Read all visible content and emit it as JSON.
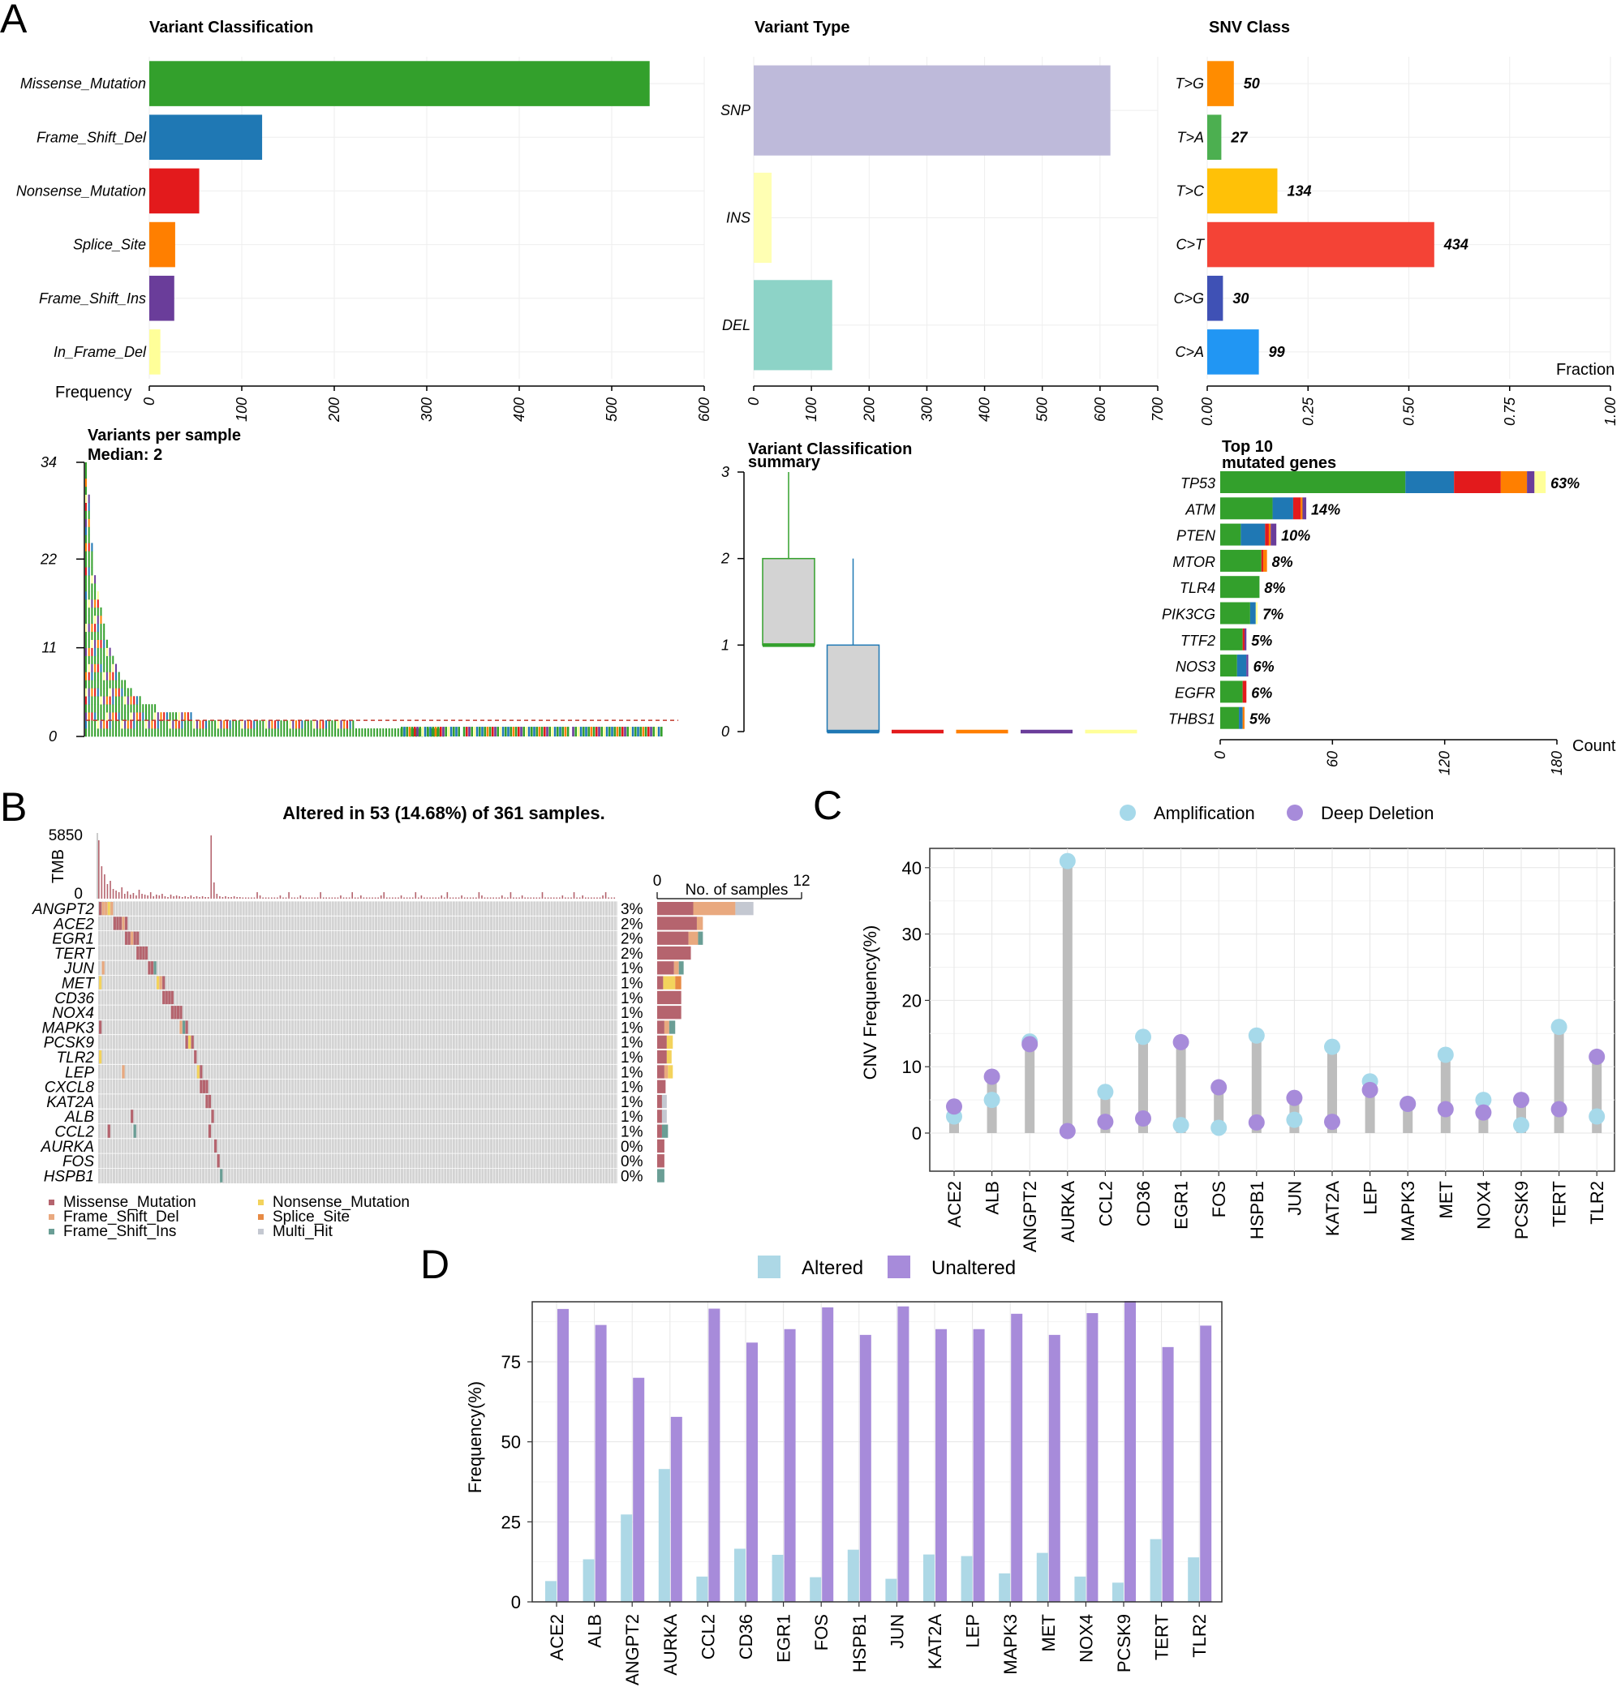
{
  "panel_labels": {
    "a": "A",
    "b": "B",
    "c": "C",
    "d": "D"
  },
  "chart_data": [
    {
      "id": "variant_classification",
      "type": "bar",
      "orientation": "horizontal",
      "title": "Variant Classification",
      "xlabel": "Frequency",
      "categories": [
        "Missense_Mutation",
        "Frame_Shift_Del",
        "Nonsense_Mutation",
        "Splice_Site",
        "Frame_Shift_Ins",
        "In_Frame_Del"
      ],
      "values": [
        541,
        122,
        54,
        28,
        27,
        12
      ],
      "colors": [
        "#33a02c",
        "#1f78b4",
        "#e31a1c",
        "#ff7f00",
        "#6a3d9a",
        "#ffff99"
      ],
      "xlim": [
        0,
        600
      ],
      "ticks": [
        0,
        100,
        200,
        300,
        400,
        500,
        600
      ]
    },
    {
      "id": "variant_type",
      "type": "bar",
      "orientation": "horizontal",
      "title": "Variant Type",
      "categories": [
        "SNP",
        "INS",
        "DEL"
      ],
      "values": [
        618,
        31,
        136
      ],
      "colors": [
        "#bebada",
        "#ffffb3",
        "#8dd3c7"
      ],
      "xlim": [
        0,
        700
      ],
      "ticks": [
        0,
        100,
        200,
        300,
        400,
        500,
        600,
        700
      ]
    },
    {
      "id": "snv_class",
      "type": "bar",
      "orientation": "horizontal",
      "title": "SNV Class",
      "xlabel": "Fraction",
      "categories": [
        "T>G",
        "T>A",
        "T>C",
        "C>T",
        "C>G",
        "C>A"
      ],
      "values": [
        0.066,
        0.035,
        0.174,
        0.563,
        0.039,
        0.128
      ],
      "labels": [
        "50",
        "27",
        "134",
        "434",
        "30",
        "99"
      ],
      "colors": [
        "#ff8c00",
        "#4caf50",
        "#ffc107",
        "#f44336",
        "#3f51b5",
        "#2196f3"
      ],
      "xlim": [
        0,
        1
      ],
      "ticks": [
        "0.00",
        "0.25",
        "0.50",
        "0.75",
        "1.00"
      ]
    },
    {
      "id": "variants_per_sample",
      "type": "bar",
      "title": "Variants per sample",
      "subtitle": "Median: 2",
      "ylim": [
        0,
        34
      ],
      "ticks": [
        "34",
        "22",
        "11",
        "0"
      ],
      "tick_values": [
        34,
        22,
        11,
        0
      ],
      "median": 2,
      "n_samples": 361,
      "profile": [
        34,
        30,
        24,
        20,
        18,
        16,
        14,
        12,
        11,
        10,
        9,
        8,
        7,
        7,
        6,
        6,
        5,
        5,
        5,
        4,
        4,
        4,
        4,
        4,
        3,
        3,
        3,
        3,
        3,
        3,
        3,
        3,
        3,
        3,
        3,
        3,
        2,
        2,
        2,
        2,
        2,
        2,
        2,
        2,
        2,
        2,
        2,
        2,
        2,
        2,
        2,
        2,
        2,
        2,
        2,
        2,
        2,
        2,
        2,
        2,
        2,
        2,
        2,
        2,
        2,
        2,
        2,
        2,
        2,
        2,
        2,
        2,
        2,
        2,
        2,
        2,
        2,
        2,
        2,
        2,
        2,
        2,
        2,
        2,
        2,
        2,
        2,
        2,
        2,
        2,
        1,
        1,
        1,
        1,
        1,
        1,
        1,
        1,
        1,
        1,
        1,
        1,
        1,
        1,
        1,
        1,
        1,
        1,
        1,
        1,
        1,
        1,
        1,
        1,
        1,
        1,
        1,
        1,
        1,
        1
      ]
    },
    {
      "id": "variant_classification_summary",
      "type": "box",
      "title": "Variant Classification",
      "title2": "summary",
      "ylim": [
        0,
        3
      ],
      "ticks": [
        "3",
        "2",
        "1",
        "0"
      ],
      "boxes": [
        {
          "name": "Missense_Mutation",
          "min": 1,
          "q1": 1,
          "median": 1,
          "q3": 2,
          "max": 3,
          "color": "#33a02c"
        },
        {
          "name": "Frame_Shift_Del",
          "min": 0,
          "q1": 0,
          "median": 0,
          "q3": 1,
          "max": 2,
          "color": "#1f78b4"
        },
        {
          "name": "Nonsense_Mutation",
          "min": 0,
          "q1": 0,
          "median": 0,
          "q3": 0,
          "max": 0,
          "color": "#e31a1c"
        },
        {
          "name": "Splice_Site",
          "min": 0,
          "q1": 0,
          "median": 0,
          "q3": 0,
          "max": 0,
          "color": "#ff7f00"
        },
        {
          "name": "Frame_Shift_Ins",
          "min": 0,
          "q1": 0,
          "median": 0,
          "q3": 0,
          "max": 0,
          "color": "#6a3d9a"
        },
        {
          "name": "In_Frame_Del",
          "min": 0,
          "q1": 0,
          "median": 0,
          "q3": 0,
          "max": 0,
          "color": "#ffff99"
        }
      ]
    },
    {
      "id": "top10_genes",
      "type": "bar",
      "orientation": "horizontal",
      "stacked": true,
      "title": "Top 10",
      "title2": "mutated genes",
      "xlabel": "Count",
      "xlim": [
        0,
        180
      ],
      "ticks": [
        "0",
        "60",
        "120",
        "180"
      ],
      "genes": [
        "TP53",
        "ATM",
        "PTEN",
        "MTOR",
        "TLR4",
        "PIK3CG",
        "TTF2",
        "NOS3",
        "EGFR",
        "THBS1"
      ],
      "percent": [
        "63%",
        "14%",
        "10%",
        "8%",
        "8%",
        "7%",
        "5%",
        "6%",
        "6%",
        "5%"
      ],
      "series": [
        {
          "name": "Missense_Mutation",
          "color": "#33a02c",
          "values": [
            99,
            28,
            11,
            22,
            21,
            16,
            12,
            9,
            12,
            10
          ]
        },
        {
          "name": "Frame_Shift_Del",
          "color": "#1f78b4",
          "values": [
            26,
            11,
            13,
            0,
            0,
            3,
            0,
            5,
            0,
            2
          ]
        },
        {
          "name": "Nonsense_Mutation",
          "color": "#e31a1c",
          "values": [
            25,
            4,
            2,
            1,
            0,
            0,
            1,
            0,
            2,
            0
          ]
        },
        {
          "name": "Splice_Site",
          "color": "#ff7f00",
          "values": [
            14,
            1,
            1,
            2,
            0,
            0,
            0,
            0,
            0,
            1
          ]
        },
        {
          "name": "Frame_Shift_Ins",
          "color": "#6a3d9a",
          "values": [
            4,
            2,
            3,
            0,
            0,
            0,
            1,
            1,
            0,
            0
          ]
        },
        {
          "name": "In_Frame_Del",
          "color": "#ffff99",
          "values": [
            6,
            0,
            0,
            0,
            0,
            1,
            0,
            0,
            0,
            0
          ]
        }
      ]
    },
    {
      "id": "oncoplot",
      "type": "heatmap",
      "title": "Altered in 53 (14.68%) of 361 samples.",
      "tmb_label": "TMB",
      "tmb_max": "5850",
      "tmb_min": "0",
      "genes": [
        "ANGPT2",
        "ACE2",
        "EGR1",
        "TERT",
        "JUN",
        "MET",
        "CD36",
        "NOX4",
        "MAPK3",
        "PCSK9",
        "TLR2",
        "LEP",
        "CXCL8",
        "KAT2A",
        "ALB",
        "CCL2",
        "AURKA",
        "FOS",
        "HSPB1"
      ],
      "percent": [
        "3%",
        "2%",
        "2%",
        "2%",
        "1%",
        "1%",
        "1%",
        "1%",
        "1%",
        "1%",
        "1%",
        "1%",
        "1%",
        "1%",
        "1%",
        "1%",
        "0%",
        "0%",
        "0%"
      ],
      "side_xlabel": "No. of samples",
      "side_ticks": [
        "0",
        "12"
      ],
      "side_max": 12,
      "side_counts": [
        [
          3,
          3.5,
          0,
          0,
          0,
          1.5
        ],
        [
          3.3,
          0.5,
          0,
          0,
          0,
          0
        ],
        [
          2.6,
          0.8,
          0.4,
          0,
          0,
          0
        ],
        [
          2.8,
          0,
          0,
          0,
          0,
          0
        ],
        [
          1.4,
          0.4,
          0.4,
          0,
          0,
          0
        ],
        [
          0.5,
          0,
          0,
          1.0,
          0.5,
          0
        ],
        [
          2,
          0,
          0,
          0,
          0,
          0
        ],
        [
          2,
          0,
          0,
          0,
          0,
          0
        ],
        [
          0.6,
          0.4,
          0.5,
          0,
          0,
          0
        ],
        [
          0.8,
          0,
          0,
          0.5,
          0,
          0
        ],
        [
          0.8,
          0,
          0,
          0.4,
          0,
          0
        ],
        [
          0.6,
          0.3,
          0,
          0.4,
          0,
          0
        ],
        [
          0.7,
          0,
          0,
          0,
          0,
          0
        ],
        [
          0.4,
          0,
          0,
          0,
          0,
          0.4
        ],
        [
          0.4,
          0,
          0,
          0,
          0,
          0.4
        ],
        [
          0.4,
          0,
          0.5,
          0,
          0,
          0
        ],
        [
          0.6,
          0,
          0,
          0,
          0,
          0
        ],
        [
          0.6,
          0,
          0,
          0,
          0,
          0
        ],
        [
          0,
          0,
          0.6,
          0,
          0,
          0
        ]
      ],
      "legend": [
        "Missense_Mutation",
        "Nonsense_Mutation",
        "Frame_Shift_Del",
        "Splice_Site",
        "Frame_Shift_Ins",
        "Multi_Hit"
      ],
      "legend_colors": [
        "#b5646e",
        "#f3d35c",
        "#e9a97f",
        "#e78a44",
        "#6a9e95",
        "#c4c8d1"
      ]
    },
    {
      "id": "cnv_frequency",
      "type": "scatter",
      "ylabel": "CNV Frequency(%)",
      "ylim": [
        0,
        43
      ],
      "ticks": [
        0,
        10,
        20,
        30,
        40
      ],
      "legend": [
        "Amplification",
        "Deep Deletion"
      ],
      "colors": {
        "amp": "#a6d9ea",
        "del": "#a78bda",
        "seg": "#bdbdbd"
      },
      "categories": [
        "ACE2",
        "ALB",
        "ANGPT2",
        "AURKA",
        "CCL2",
        "CD36",
        "EGR1",
        "FOS",
        "HSPB1",
        "JUN",
        "KAT2A",
        "LEP",
        "MAPK3",
        "MET",
        "NOX4",
        "PCSK9",
        "TERT",
        "TLR2"
      ],
      "amplification": [
        2.5,
        5,
        13.8,
        41,
        6.2,
        14.5,
        1.2,
        0.8,
        14.7,
        2,
        13,
        7.8,
        4.4,
        11.8,
        5,
        1.2,
        16,
        2.5
      ],
      "deep_deletion": [
        4,
        8.5,
        13.4,
        0.3,
        1.7,
        2.2,
        13.7,
        6.9,
        1.6,
        5.3,
        1.7,
        6.5,
        4.4,
        3.6,
        3.1,
        5,
        3.6,
        11.5
      ]
    },
    {
      "id": "alteration_frequency",
      "type": "bar",
      "ylabel": "Frequency(%)",
      "ylim": [
        0,
        92
      ],
      "ticks": [
        0,
        25,
        50,
        75
      ],
      "legend": [
        "Altered",
        "Unaltered"
      ],
      "categories": [
        "ACE2",
        "ALB",
        "ANGPT2",
        "AURKA",
        "CCL2",
        "CD36",
        "EGR1",
        "FOS",
        "HSPB1",
        "JUN",
        "KAT2A",
        "LEP",
        "MAPK3",
        "MET",
        "NOX4",
        "PCSK9",
        "TERT",
        "TLR2"
      ],
      "series": [
        {
          "name": "Altered",
          "color": "#add8e6",
          "values": [
            6.5,
            13.3,
            27.3,
            41.5,
            7.9,
            16.6,
            14.7,
            7.7,
            16.3,
            7.2,
            14.8,
            14.3,
            8.9,
            15.3,
            7.9,
            6,
            19.6,
            13.9
          ]
        },
        {
          "name": "Unaltered",
          "color": "#a78bda",
          "values": [
            91.5,
            86.5,
            70,
            57.8,
            91.6,
            81,
            85.2,
            92,
            83.4,
            92.3,
            85.2,
            85.2,
            90,
            83.4,
            90.2,
            94,
            79.6,
            86.3
          ]
        }
      ]
    }
  ]
}
